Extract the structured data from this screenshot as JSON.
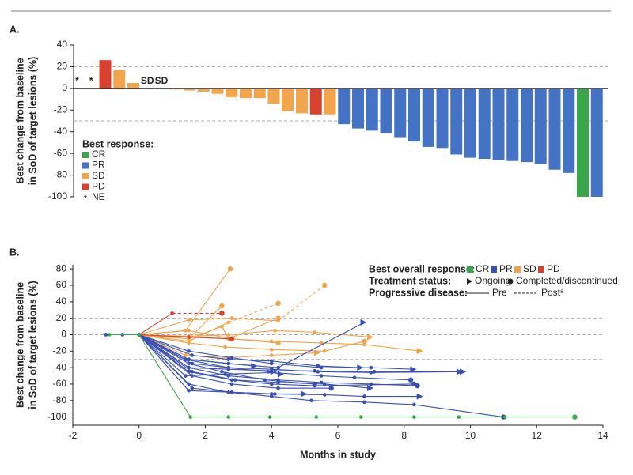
{
  "chart_data": [
    {
      "type": "bar",
      "title": "A.",
      "ylabel": [
        "Best change from baseline",
        "in SoD of target lesions (%)"
      ],
      "ylim": [
        -100,
        40
      ],
      "yticks": [
        -100,
        -80,
        -60,
        -40,
        -20,
        0,
        20,
        40
      ],
      "reference_lines": [
        20,
        -30
      ],
      "values": [
        26,
        17,
        5,
        -1,
        -2,
        -3,
        -5,
        -8,
        -9,
        -9,
        -14,
        -21,
        -23,
        -24,
        -24,
        -33,
        -37,
        -39,
        -41,
        -45,
        -49,
        -54,
        -55,
        -61,
        -64,
        -65,
        -66,
        -67,
        -68,
        -70,
        -75,
        -78,
        -100,
        -100
      ],
      "responses": [
        "PD",
        "SD",
        "SD",
        "SD",
        "SD",
        "SD",
        "SD",
        "SD",
        "SD",
        "SD",
        "SD",
        "SD",
        "SD",
        "PD",
        "SD",
        "PR",
        "PR",
        "PR",
        "PR",
        "PR",
        "PR",
        "PR",
        "PR",
        "PR",
        "PR",
        "PR",
        "PR",
        "PR",
        "PR",
        "PR",
        "PR",
        "PR",
        "CR",
        "PR"
      ],
      "annotations": [
        {
          "text": "*",
          "response": "NE"
        },
        {
          "text": "*",
          "response": "NE"
        },
        {
          "text": "SD",
          "response": "SD"
        },
        {
          "text": "SD",
          "response": "SD"
        }
      ],
      "legend_title": "Best response:",
      "legend": [
        {
          "name": "CR",
          "color": "#3aa54a"
        },
        {
          "name": "PR",
          "color": "#4472c4"
        },
        {
          "name": "SD",
          "color": "#f2a54a"
        },
        {
          "name": "PD",
          "color": "#d9402d"
        },
        {
          "name": "NE",
          "color": "#888888",
          "marker": "*"
        }
      ]
    },
    {
      "type": "line",
      "title": "B.",
      "ylabel": [
        "Best change from baseline",
        "in SoD of target lesions (%)"
      ],
      "xlabel": "Months in study",
      "xlim": [
        -2,
        14
      ],
      "xticks": [
        -2,
        0,
        2,
        4,
        6,
        8,
        10,
        12,
        14
      ],
      "ylim": [
        -110,
        85
      ],
      "yticks": [
        -100,
        -80,
        -60,
        -40,
        -20,
        0,
        20,
        40,
        60,
        80
      ],
      "reference_lines": [
        20,
        0,
        -30
      ],
      "legend": {
        "response_title": "Best overall response:",
        "responses": [
          {
            "name": "CR",
            "color": "#3aa54a"
          },
          {
            "name": "PR",
            "color": "#3a4fb2"
          },
          {
            "name": "SD",
            "color": "#f0a348"
          },
          {
            "name": "PD",
            "color": "#d9402d"
          }
        ],
        "status_title": "Treatment status:",
        "statuses": [
          {
            "name": "Ongoing",
            "marker": "arrow"
          },
          {
            "name": "Completed/discontinued",
            "marker": "circle"
          }
        ],
        "progression_title": "Progressive disease:",
        "progressions": [
          {
            "name": "Pre",
            "dash": "solid"
          },
          {
            "name": "Postᵃ",
            "dash": "dashed"
          }
        ]
      },
      "series": [
        {
          "response": "SD",
          "dash": "solid",
          "end": "circle",
          "x": [
            -0.5,
            0,
            1.4,
            2.75
          ],
          "values": [
            0,
            0,
            5,
            80
          ]
        },
        {
          "response": "SD",
          "dash": "solid",
          "end": "circle",
          "x": [
            0,
            1.5,
            2.5,
            2.7,
            4.2
          ],
          "values": [
            0,
            -5,
            10,
            -5,
            20
          ]
        },
        {
          "response": "SD",
          "dash": "solid",
          "x": [
            0,
            1.5,
            2.8,
            4.2
          ],
          "values": [
            0,
            18,
            20,
            17
          ]
        },
        {
          "response": "SD",
          "dash": "dashed",
          "end": "circle",
          "x": [
            4.2,
            5.6
          ],
          "values": [
            17,
            60
          ]
        },
        {
          "response": "SD",
          "dash": "solid",
          "x": [
            0,
            1.5,
            2.7
          ],
          "values": [
            0,
            -8,
            15
          ]
        },
        {
          "response": "SD",
          "dash": "dashed",
          "end": "circle",
          "x": [
            2.7,
            4.2
          ],
          "values": [
            15,
            38
          ]
        },
        {
          "response": "SD",
          "dash": "solid",
          "end": "arrow",
          "x": [
            0,
            1.5,
            2.7,
            4,
            5.5,
            6.8,
            8.5
          ],
          "values": [
            0,
            -3,
            -5,
            -8,
            -10,
            -12,
            -20
          ]
        },
        {
          "response": "SD",
          "dash": "solid",
          "end": "circle",
          "x": [
            0,
            1.5,
            2.6,
            4,
            5.6,
            6.8
          ],
          "values": [
            0,
            -10,
            -15,
            -18,
            -20,
            -8
          ]
        },
        {
          "response": "SD",
          "dash": "solid",
          "end": "arrow",
          "x": [
            0,
            1.4,
            2.7,
            4,
            5.4
          ],
          "values": [
            0,
            -25,
            -28,
            -25,
            -22
          ]
        },
        {
          "response": "SD",
          "dash": "solid",
          "end": "circle",
          "x": [
            0,
            1.5,
            2.8,
            4.2
          ],
          "values": [
            0,
            5,
            -5,
            -10
          ]
        },
        {
          "response": "SD",
          "dash": "solid",
          "end": "circle",
          "x": [
            0,
            1.5,
            2.5
          ],
          "values": [
            0,
            -5,
            35
          ]
        },
        {
          "response": "SD",
          "dash": "solid",
          "end": "arrow",
          "x": [
            0,
            1.5,
            2.7,
            4.1,
            5.3,
            7
          ],
          "values": [
            0,
            -2,
            0,
            5,
            3,
            -3
          ]
        },
        {
          "response": "PD",
          "dash": "solid",
          "x": [
            -1,
            0,
            1
          ],
          "values": [
            0,
            0,
            26
          ]
        },
        {
          "response": "PD",
          "dash": "dashed",
          "end": "circle",
          "x": [
            1,
            2.5
          ],
          "values": [
            26,
            26
          ]
        },
        {
          "response": "PD",
          "dash": "solid",
          "end": "circle",
          "x": [
            0,
            1.5,
            2.8
          ],
          "values": [
            0,
            -3,
            -5
          ]
        },
        {
          "response": "PR",
          "dash": "solid",
          "end": "arrow",
          "x": [
            -1,
            0,
            1.5,
            2.7,
            4.2,
            6.8
          ],
          "values": [
            0,
            0,
            -30,
            -35,
            -40,
            15
          ]
        },
        {
          "response": "PR",
          "dash": "solid",
          "end": "circle",
          "x": [
            -0.5,
            0,
            1.5,
            2.8,
            4,
            5.3,
            8.3
          ],
          "values": [
            0,
            0,
            -45,
            -55,
            -60,
            -62,
            -60
          ]
        },
        {
          "response": "PR",
          "dash": "solid",
          "end": "arrow",
          "x": [
            0,
            1.6,
            2.7,
            4,
            5.4,
            7,
            9.7
          ],
          "values": [
            0,
            -35,
            -40,
            -42,
            -45,
            -46,
            -45
          ]
        },
        {
          "response": "PR",
          "dash": "solid",
          "end": "circle",
          "x": [
            0,
            1.5,
            2.7,
            4.2,
            5.5,
            7,
            8.4
          ],
          "values": [
            0,
            -40,
            -50,
            -55,
            -58,
            -60,
            -62
          ]
        },
        {
          "response": "PR",
          "dash": "solid",
          "end": "arrow",
          "x": [
            0,
            1.6,
            2.8,
            4,
            5.6,
            6.8,
            8.5
          ],
          "values": [
            0,
            -65,
            -70,
            -72,
            -73,
            -75,
            -75
          ]
        },
        {
          "response": "PR",
          "dash": "solid",
          "end": "circle",
          "x": [
            0,
            1.5,
            2.7,
            4,
            5.2,
            6.8,
            8.3,
            11
          ],
          "values": [
            0,
            -60,
            -70,
            -75,
            -80,
            -82,
            -85,
            -100
          ]
        },
        {
          "response": "PR",
          "dash": "solid",
          "end": "arrow",
          "x": [
            0,
            1.4,
            2.7,
            3.9,
            4.3
          ],
          "values": [
            0,
            -30,
            -40,
            -45,
            -48
          ]
        },
        {
          "response": "PR",
          "dash": "solid",
          "end": "arrow",
          "x": [
            0,
            1.6,
            2.7,
            4,
            5.4,
            6.7
          ],
          "values": [
            0,
            -25,
            -30,
            -32,
            -38,
            -40
          ]
        },
        {
          "response": "PR",
          "dash": "solid",
          "end": "circle",
          "x": [
            0,
            1.5,
            2.5,
            3.8,
            5.3
          ],
          "values": [
            0,
            -35,
            -45,
            -55,
            -60
          ]
        },
        {
          "response": "PR",
          "dash": "solid",
          "end": "arrow",
          "x": [
            0,
            1.5,
            2.8,
            4,
            5.5,
            7,
            8.3
          ],
          "values": [
            0,
            -20,
            -28,
            -35,
            -40,
            -40,
            -42
          ]
        },
        {
          "response": "PR",
          "dash": "solid",
          "end": "circle",
          "x": [
            0,
            1.6,
            2.8,
            4.2,
            5.8
          ],
          "values": [
            0,
            -50,
            -60,
            -65,
            -65
          ]
        },
        {
          "response": "PR",
          "dash": "solid",
          "end": "arrow",
          "x": [
            0,
            1.5,
            2.7,
            3.5
          ],
          "values": [
            0,
            -30,
            -35,
            -38
          ]
        },
        {
          "response": "PR",
          "dash": "solid",
          "end": "arrow",
          "x": [
            0,
            1.6,
            2.9,
            4.2,
            5.6,
            7
          ],
          "values": [
            0,
            -45,
            -55,
            -58,
            -60,
            -65
          ]
        },
        {
          "response": "PR",
          "dash": "solid",
          "end": "arrow",
          "x": [
            0,
            1.5,
            2.8,
            4.1,
            5
          ],
          "values": [
            0,
            -68,
            -70,
            -72,
            -72
          ]
        },
        {
          "response": "PR",
          "dash": "solid",
          "end": "circle",
          "x": [
            0,
            1.4,
            2.6,
            4,
            5.5,
            6.5,
            8.2
          ],
          "values": [
            0,
            -50,
            -48,
            -46,
            -50,
            -52,
            -55
          ]
        },
        {
          "response": "PR",
          "dash": "solid",
          "end": "arrow",
          "x": [
            0,
            1.5,
            2.7,
            4.1,
            5.3,
            7.1,
            9.8
          ],
          "values": [
            0,
            -40,
            -42,
            -44,
            -44,
            -45,
            -45
          ]
        },
        {
          "response": "CR",
          "dash": "solid",
          "end": "circle",
          "x": [
            -0.9,
            0,
            1.55,
            2.7,
            3.95,
            5.35,
            6.7,
            8.3,
            9.65,
            11.05,
            13.15
          ],
          "values": [
            0,
            0,
            -100,
            -100,
            -100,
            -100,
            -100,
            -100,
            -100,
            -100,
            -100
          ]
        }
      ]
    }
  ]
}
